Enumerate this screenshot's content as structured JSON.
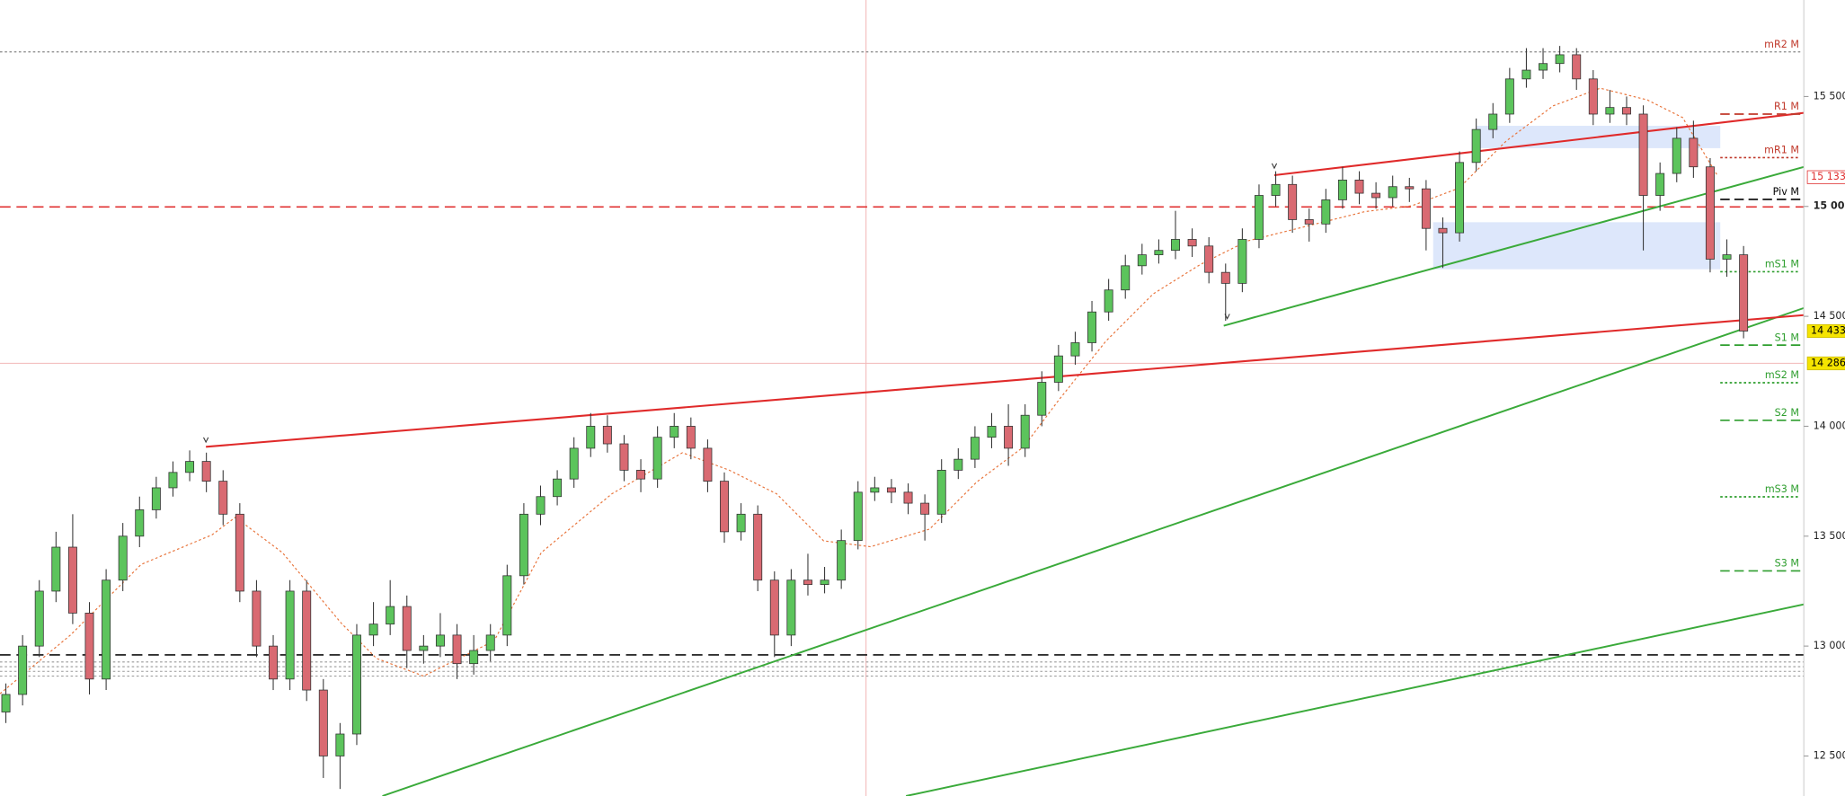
{
  "chart_data": {
    "type": "candlestick",
    "ylim": [
      12318,
      15939
    ],
    "yticks": [
      {
        "value": 15500,
        "label": "15 500"
      },
      {
        "value": 15000,
        "label": "15 000"
      },
      {
        "value": 14500,
        "label": "14 500"
      },
      {
        "value": 14000,
        "label": "14 000"
      },
      {
        "value": 13500,
        "label": "13 500"
      },
      {
        "value": 13000,
        "label": "13 000"
      },
      {
        "value": 12500,
        "label": "12 500"
      }
    ],
    "up_color": "#5cc45c",
    "down_color": "#d96a72",
    "levels": [
      {
        "name": "mR2 M",
        "value": 15703,
        "color": "#c0392b"
      },
      {
        "name": "R1 M",
        "value": 15420,
        "color": "#c0392b"
      },
      {
        "name": "mR1 M",
        "value": 15222,
        "color": "#c0392b"
      },
      {
        "name": "Piv M",
        "value": 15032,
        "color": "#000000"
      },
      {
        "name": "mS1 M",
        "value": 14703,
        "color": "#2e9e2e"
      },
      {
        "name": "S1 M",
        "value": 14369,
        "color": "#2e9e2e"
      },
      {
        "name": "mS2 M",
        "value": 14198,
        "color": "#2e9e2e"
      },
      {
        "name": "S2 M",
        "value": 14027,
        "color": "#2e9e2e"
      },
      {
        "name": "mS3 M",
        "value": 13679,
        "color": "#2e9e2e"
      },
      {
        "name": "S3 M",
        "value": 13342,
        "color": "#2e9e2e"
      }
    ],
    "price_tags": [
      {
        "value": 15133,
        "label": "15 133,",
        "color": "#ffffff"
      },
      {
        "value": 14433,
        "label": "14 433,",
        "color": "#f5e400"
      },
      {
        "value": 14286,
        "label": "14 286",
        "color": "#f5e400"
      }
    ],
    "ohlc": [
      [
        12700,
        12830,
        12650,
        12780
      ],
      [
        12780,
        13050,
        12730,
        13000
      ],
      [
        13000,
        13300,
        12950,
        13250
      ],
      [
        13250,
        13520,
        13200,
        13450
      ],
      [
        13450,
        13600,
        13100,
        13150
      ],
      [
        13150,
        13200,
        12780,
        12850
      ],
      [
        12850,
        13350,
        12800,
        13300
      ],
      [
        13300,
        13560,
        13250,
        13500
      ],
      [
        13500,
        13680,
        13450,
        13620
      ],
      [
        13620,
        13770,
        13580,
        13720
      ],
      [
        13720,
        13840,
        13680,
        13790
      ],
      [
        13790,
        13890,
        13750,
        13840
      ],
      [
        13840,
        13880,
        13700,
        13750
      ],
      [
        13750,
        13800,
        13550,
        13600
      ],
      [
        13600,
        13650,
        13200,
        13250
      ],
      [
        13250,
        13300,
        12950,
        13000
      ],
      [
        13000,
        13050,
        12800,
        12850
      ],
      [
        12850,
        13300,
        12800,
        13250
      ],
      [
        13250,
        13300,
        12750,
        12800
      ],
      [
        12800,
        12850,
        12400,
        12500
      ],
      [
        12500,
        12650,
        12350,
        12600
      ],
      [
        12600,
        13100,
        12550,
        13050
      ],
      [
        13050,
        13200,
        13000,
        13100
      ],
      [
        13100,
        13300,
        13050,
        13180
      ],
      [
        13180,
        13230,
        12900,
        12980
      ],
      [
        12980,
        13050,
        12920,
        13000
      ],
      [
        13000,
        13150,
        12950,
        13050
      ],
      [
        13050,
        13100,
        12850,
        12920
      ],
      [
        12920,
        13050,
        12870,
        12980
      ],
      [
        12980,
        13100,
        12930,
        13050
      ],
      [
        13050,
        13370,
        13000,
        13320
      ],
      [
        13320,
        13650,
        13280,
        13600
      ],
      [
        13600,
        13730,
        13550,
        13680
      ],
      [
        13680,
        13800,
        13640,
        13760
      ],
      [
        13760,
        13950,
        13720,
        13900
      ],
      [
        13900,
        14060,
        13860,
        14000
      ],
      [
        14000,
        14050,
        13880,
        13920
      ],
      [
        13920,
        13960,
        13750,
        13800
      ],
      [
        13800,
        13850,
        13700,
        13760
      ],
      [
        13760,
        14000,
        13720,
        13950
      ],
      [
        13950,
        14060,
        13900,
        14000
      ],
      [
        14000,
        14040,
        13850,
        13900
      ],
      [
        13900,
        13940,
        13700,
        13750
      ],
      [
        13750,
        13790,
        13470,
        13520
      ],
      [
        13520,
        13650,
        13480,
        13600
      ],
      [
        13600,
        13640,
        13250,
        13300
      ],
      [
        13300,
        13340,
        12950,
        13050
      ],
      [
        13050,
        13350,
        13000,
        13300
      ],
      [
        13300,
        13420,
        13230,
        13280
      ],
      [
        13280,
        13360,
        13240,
        13300
      ],
      [
        13300,
        13530,
        13260,
        13480
      ],
      [
        13480,
        13750,
        13440,
        13700
      ],
      [
        13700,
        13770,
        13660,
        13720
      ],
      [
        13720,
        13760,
        13650,
        13700
      ],
      [
        13700,
        13740,
        13600,
        13650
      ],
      [
        13650,
        13690,
        13480,
        13600
      ],
      [
        13600,
        13850,
        13560,
        13800
      ],
      [
        13800,
        13900,
        13760,
        13850
      ],
      [
        13850,
        14000,
        13810,
        13950
      ],
      [
        13950,
        14060,
        13900,
        14000
      ],
      [
        14000,
        14100,
        13820,
        13900
      ],
      [
        13900,
        14100,
        13860,
        14050
      ],
      [
        14050,
        14250,
        14000,
        14200
      ],
      [
        14200,
        14370,
        14160,
        14320
      ],
      [
        14320,
        14430,
        14280,
        14380
      ],
      [
        14380,
        14570,
        14340,
        14520
      ],
      [
        14520,
        14670,
        14480,
        14620
      ],
      [
        14620,
        14780,
        14580,
        14730
      ],
      [
        14730,
        14830,
        14690,
        14780
      ],
      [
        14780,
        14850,
        14740,
        14800
      ],
      [
        14800,
        14980,
        14760,
        14850
      ],
      [
        14850,
        14900,
        14770,
        14820
      ],
      [
        14820,
        14860,
        14650,
        14700
      ],
      [
        14700,
        14740,
        14480,
        14650
      ],
      [
        14650,
        14900,
        14610,
        14850
      ],
      [
        14850,
        15100,
        14810,
        15050
      ],
      [
        15050,
        15160,
        15000,
        15100
      ],
      [
        15100,
        15140,
        14880,
        14940
      ],
      [
        14940,
        14990,
        14840,
        14920
      ],
      [
        14920,
        15080,
        14880,
        15030
      ],
      [
        15030,
        15180,
        14990,
        15120
      ],
      [
        15120,
        15160,
        15010,
        15060
      ],
      [
        15060,
        15110,
        14990,
        15040
      ],
      [
        15040,
        15140,
        15000,
        15090
      ],
      [
        15090,
        15130,
        15020,
        15080
      ],
      [
        15080,
        15120,
        14800,
        14900
      ],
      [
        14900,
        14950,
        14720,
        14880
      ],
      [
        14880,
        15250,
        14840,
        15200
      ],
      [
        15200,
        15400,
        15160,
        15350
      ],
      [
        15350,
        15470,
        15310,
        15420
      ],
      [
        15420,
        15630,
        15380,
        15580
      ],
      [
        15580,
        15720,
        15540,
        15620
      ],
      [
        15620,
        15720,
        15580,
        15650
      ],
      [
        15650,
        15730,
        15610,
        15690
      ],
      [
        15690,
        15720,
        15530,
        15580
      ],
      [
        15580,
        15620,
        15370,
        15420
      ],
      [
        15420,
        15530,
        15380,
        15450
      ],
      [
        15450,
        15500,
        15370,
        15420
      ],
      [
        15420,
        15460,
        14800,
        15050
      ],
      [
        15050,
        15200,
        14980,
        15150
      ],
      [
        15150,
        15360,
        15110,
        15310
      ],
      [
        15310,
        15390,
        15130,
        15180
      ],
      [
        15180,
        15220,
        14700,
        14760
      ],
      [
        14760,
        14850,
        14680,
        14780
      ],
      [
        14780,
        14820,
        14400,
        14433
      ]
    ]
  }
}
